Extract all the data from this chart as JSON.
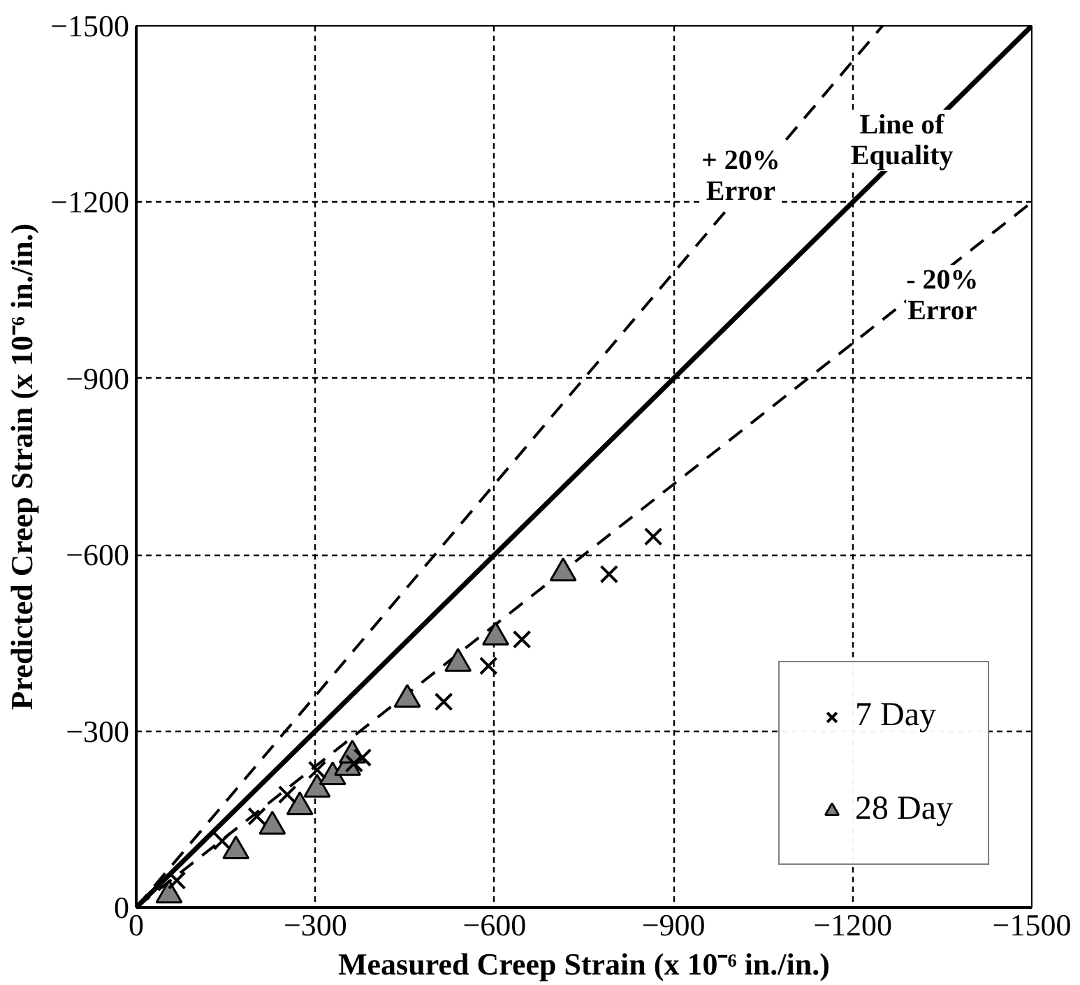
{
  "chart_data": {
    "type": "scatter",
    "xlabel": "Measured Creep Strain (x 10⁻⁶ in./in.)",
    "ylabel": "Predicted Creep Strain (x 10⁻⁶ in./in.)",
    "xlim": [
      0,
      -1500
    ],
    "ylim": [
      0,
      -1500
    ],
    "xticks": [
      0,
      -300,
      -600,
      -900,
      -1200,
      -1500
    ],
    "yticks": [
      0,
      -300,
      -600,
      -900,
      -1200,
      -1500
    ],
    "grid": true,
    "legend": "bottom right",
    "series": [
      {
        "name": "7 Day",
        "marker": "cross",
        "color": "#000000",
        "x": [
          -68,
          -144,
          -202,
          -253,
          -303,
          -365,
          -379,
          -515,
          -590,
          -646,
          -792,
          -866
        ],
        "values": [
          -46,
          -113,
          -155,
          -192,
          -234,
          -245,
          -255,
          -350,
          -411,
          -456,
          -567,
          -631
        ]
      },
      {
        "name": "28 Day",
        "marker": "triangle",
        "color": "#808080",
        "x": [
          -55,
          -167,
          -228,
          -274,
          -303,
          -329,
          -354,
          -362,
          -454,
          -539,
          -602,
          -715
        ],
        "values": [
          -21,
          -96,
          -138,
          -171,
          -201,
          -222,
          -238,
          -259,
          -354,
          -415,
          -460,
          -569
        ]
      },
      {
        "type": "line",
        "line_style": "solid",
        "color": "#000000",
        "x": [
          0,
          -1500
        ],
        "values": [
          0,
          -1500
        ]
      },
      {
        "type": "line",
        "line_style": "dashed",
        "color": "#000000",
        "x": [
          0,
          -1250
        ],
        "values": [
          0,
          -1500
        ]
      },
      {
        "type": "line",
        "line_style": "dashed",
        "color": "#000000",
        "x": [
          0,
          -1500
        ],
        "values": [
          0,
          -1200
        ]
      }
    ],
    "annotations": [
      "+ 20%\nError",
      "Line of\nEquality",
      "- 20%\nError"
    ]
  }
}
